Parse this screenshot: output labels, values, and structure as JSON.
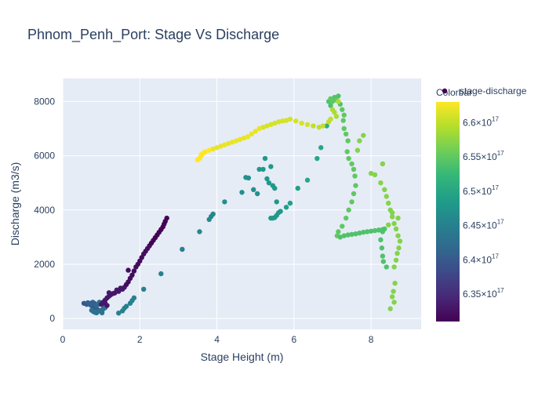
{
  "chart_data": {
    "type": "scatter",
    "title": "Phnom_Penh_Port: Stage Vs Discharge",
    "xlabel": "Stage Height (m)",
    "ylabel": "Discharge (m3/s)",
    "xlim": [
      0,
      9.3
    ],
    "ylim": [
      -400,
      8850
    ],
    "xticks": [
      0,
      2,
      4,
      6,
      8
    ],
    "yticks": [
      0,
      2000,
      4000,
      6000,
      8000
    ],
    "xtick_labels": [
      "0",
      "2",
      "4",
      "6",
      "8"
    ],
    "ytick_labels": [
      "0",
      "2000",
      "4000",
      "6000",
      "8000"
    ],
    "grid": true,
    "legend": {
      "label": "stage-discharge",
      "position": "top-right"
    },
    "colorbar": {
      "title": "Colorbar",
      "min": 6.31e+17,
      "max": 6.63e+17,
      "ticks": [
        6.35e+17,
        6.4e+17,
        6.45e+17,
        6.5e+17,
        6.55e+17,
        6.6e+17
      ],
      "tick_mantissa": [
        "6.35",
        "6.4",
        "6.45",
        "6.5",
        "6.55",
        "6.6"
      ],
      "tick_base": "×10",
      "tick_exponent": "17",
      "colorscale": "viridis"
    },
    "series": [
      {
        "points": [
          [
            0.55,
            560,
            6.4e+17
          ],
          [
            0.62,
            520,
            6.4e+17
          ],
          [
            0.68,
            540,
            6.4e+17
          ],
          [
            0.75,
            470,
            6.4e+17
          ],
          [
            0.7,
            560,
            6.4e+17
          ],
          [
            0.8,
            420,
            6.4e+17
          ],
          [
            0.85,
            380,
            6.4e+17
          ],
          [
            0.9,
            330,
            6.4e+17
          ],
          [
            0.95,
            290,
            6.41e+17
          ],
          [
            1.0,
            250,
            6.41e+17
          ],
          [
            0.82,
            560,
            6.41e+17
          ],
          [
            0.78,
            600,
            6.41e+17
          ],
          [
            0.65,
            580,
            6.41e+17
          ],
          [
            0.72,
            500,
            6.41e+17
          ],
          [
            0.88,
            480,
            6.42e+17
          ],
          [
            0.92,
            520,
            6.42e+17
          ],
          [
            1.0,
            560,
            6.42e+17
          ],
          [
            1.05,
            580,
            6.42e+17
          ],
          [
            0.95,
            600,
            6.42e+17
          ],
          [
            0.85,
            220,
            6.42e+17
          ],
          [
            0.9,
            260,
            6.42e+17
          ],
          [
            0.98,
            300,
            6.43e+17
          ],
          [
            1.05,
            350,
            6.43e+17
          ],
          [
            1.1,
            400,
            6.43e+17
          ],
          [
            1.08,
            450,
            6.43e+17
          ],
          [
            0.75,
            300,
            6.43e+17
          ],
          [
            0.8,
            250,
            6.43e+17
          ],
          [
            0.88,
            210,
            6.43e+17
          ],
          [
            1.02,
            210,
            6.43e+17
          ],
          [
            1.0,
            520,
            6.33e+17
          ],
          [
            1.05,
            600,
            6.33e+17
          ],
          [
            1.1,
            680,
            6.33e+17
          ],
          [
            1.15,
            760,
            6.33e+17
          ],
          [
            1.2,
            820,
            6.33e+17
          ],
          [
            1.25,
            880,
            6.33e+17
          ],
          [
            1.35,
            940,
            6.33e+17
          ],
          [
            1.45,
            1000,
            6.33e+17
          ],
          [
            1.55,
            1080,
            6.33e+17
          ],
          [
            1.6,
            1150,
            6.33e+17
          ],
          [
            1.65,
            1250,
            6.32e+17
          ],
          [
            1.7,
            1350,
            6.32e+17
          ],
          [
            1.75,
            1480,
            6.32e+17
          ],
          [
            1.8,
            1600,
            6.32e+17
          ],
          [
            1.7,
            1780,
            6.32e+17
          ],
          [
            1.85,
            1750,
            6.32e+17
          ],
          [
            1.9,
            1900,
            6.32e+17
          ],
          [
            1.95,
            2000,
            6.32e+17
          ],
          [
            2.0,
            2120,
            6.32e+17
          ],
          [
            2.05,
            2250,
            6.32e+17
          ],
          [
            2.1,
            2380,
            6.32e+17
          ],
          [
            2.15,
            2480,
            6.32e+17
          ],
          [
            2.2,
            2580,
            6.32e+17
          ],
          [
            2.25,
            2680,
            6.32e+17
          ],
          [
            2.3,
            2780,
            6.31e+17
          ],
          [
            2.35,
            2880,
            6.31e+17
          ],
          [
            2.4,
            2980,
            6.31e+17
          ],
          [
            2.45,
            3080,
            6.31e+17
          ],
          [
            2.5,
            3180,
            6.31e+17
          ],
          [
            2.55,
            3280,
            6.31e+17
          ],
          [
            2.6,
            3380,
            6.31e+17
          ],
          [
            2.63,
            3480,
            6.31e+17
          ],
          [
            2.66,
            3580,
            6.31e+17
          ],
          [
            2.7,
            3700,
            6.31e+17
          ],
          [
            1.2,
            950,
            6.33e+17
          ],
          [
            1.3,
            920,
            6.33e+17
          ],
          [
            1.4,
            1050,
            6.33e+17
          ],
          [
            1.5,
            1120,
            6.33e+17
          ],
          [
            1.1,
            560,
            6.33e+17
          ],
          [
            1.15,
            480,
            6.33e+17
          ],
          [
            1.45,
            200,
            6.45e+17
          ],
          [
            1.55,
            280,
            6.45e+17
          ],
          [
            1.6,
            380,
            6.45e+17
          ],
          [
            1.65,
            450,
            6.45e+17
          ],
          [
            1.75,
            560,
            6.45e+17
          ],
          [
            1.8,
            660,
            6.45e+17
          ],
          [
            1.85,
            760,
            6.45e+17
          ],
          [
            2.1,
            1080,
            6.45e+17
          ],
          [
            2.55,
            1650,
            6.45e+17
          ],
          [
            3.1,
            2550,
            6.45e+17
          ],
          [
            3.55,
            3200,
            6.46e+17
          ],
          [
            3.8,
            3650,
            6.46e+17
          ],
          [
            3.85,
            3760,
            6.46e+17
          ],
          [
            3.9,
            3850,
            6.46e+17
          ],
          [
            4.2,
            4300,
            6.47e+17
          ],
          [
            4.65,
            4650,
            6.47e+17
          ],
          [
            4.75,
            5200,
            6.47e+17
          ],
          [
            4.82,
            5180,
            6.47e+17
          ],
          [
            4.95,
            4750,
            6.47e+17
          ],
          [
            5.05,
            4600,
            6.47e+17
          ],
          [
            5.1,
            5500,
            6.48e+17
          ],
          [
            5.2,
            5500,
            6.48e+17
          ],
          [
            5.25,
            5900,
            6.48e+17
          ],
          [
            5.3,
            5150,
            6.48e+17
          ],
          [
            5.35,
            5000,
            6.48e+17
          ],
          [
            5.4,
            5600,
            6.48e+17
          ],
          [
            5.45,
            4900,
            6.48e+17
          ],
          [
            5.5,
            4800,
            6.48e+17
          ],
          [
            5.55,
            4300,
            6.48e+17
          ],
          [
            5.4,
            3700,
            6.48e+17
          ],
          [
            5.45,
            3700,
            6.48e+17
          ],
          [
            5.5,
            3720,
            6.48e+17
          ],
          [
            5.55,
            3800,
            6.48e+17
          ],
          [
            5.6,
            3900,
            6.48e+17
          ],
          [
            5.65,
            3950,
            6.48e+17
          ],
          [
            5.8,
            4100,
            6.49e+17
          ],
          [
            5.9,
            4250,
            6.49e+17
          ],
          [
            6.1,
            4800,
            6.49e+17
          ],
          [
            6.35,
            5100,
            6.5e+17
          ],
          [
            6.6,
            5900,
            6.5e+17
          ],
          [
            6.7,
            6300,
            6.5e+17
          ],
          [
            6.85,
            7100,
            6.51e+17
          ],
          [
            6.9,
            8000,
            6.54e+17
          ],
          [
            6.95,
            7850,
            6.54e+17
          ],
          [
            7.0,
            8050,
            6.54e+17
          ],
          [
            7.05,
            8150,
            6.54e+17
          ],
          [
            7.15,
            8200,
            6.54e+17
          ],
          [
            7.2,
            7900,
            6.54e+17
          ],
          [
            7.25,
            7700,
            6.55e+17
          ],
          [
            7.3,
            7500,
            6.55e+17
          ],
          [
            7.28,
            7300,
            6.55e+17
          ],
          [
            7.3,
            7000,
            6.55e+17
          ],
          [
            7.35,
            6800,
            6.55e+17
          ],
          [
            7.4,
            6550,
            6.55e+17
          ],
          [
            7.38,
            6150,
            6.55e+17
          ],
          [
            7.42,
            5900,
            6.55e+17
          ],
          [
            7.5,
            5700,
            6.55e+17
          ],
          [
            7.55,
            5500,
            6.55e+17
          ],
          [
            7.58,
            5250,
            6.55e+17
          ],
          [
            7.6,
            4900,
            6.55e+17
          ],
          [
            7.55,
            4600,
            6.55e+17
          ],
          [
            7.5,
            4300,
            6.55e+17
          ],
          [
            7.42,
            4000,
            6.55e+17
          ],
          [
            7.35,
            3700,
            6.55e+17
          ],
          [
            7.25,
            3400,
            6.55e+17
          ],
          [
            7.15,
            3200,
            6.55e+17
          ],
          [
            7.12,
            3050,
            6.55e+17
          ],
          [
            7.2,
            3000,
            6.54e+17
          ],
          [
            7.3,
            3050,
            6.54e+17
          ],
          [
            7.4,
            3080,
            6.54e+17
          ],
          [
            7.5,
            3100,
            6.54e+17
          ],
          [
            7.6,
            3120,
            6.54e+17
          ],
          [
            7.7,
            3150,
            6.54e+17
          ],
          [
            7.8,
            3180,
            6.54e+17
          ],
          [
            7.9,
            3200,
            6.54e+17
          ],
          [
            8.0,
            3220,
            6.54e+17
          ],
          [
            8.1,
            3240,
            6.54e+17
          ],
          [
            8.2,
            3260,
            6.54e+17
          ],
          [
            8.3,
            3280,
            6.54e+17
          ],
          [
            8.35,
            3300,
            6.54e+17
          ],
          [
            8.3,
            3200,
            6.54e+17
          ],
          [
            8.25,
            2900,
            6.54e+17
          ],
          [
            8.28,
            2600,
            6.54e+17
          ],
          [
            8.3,
            2300,
            6.54e+17
          ],
          [
            8.32,
            2100,
            6.54e+17
          ],
          [
            8.4,
            1900,
            6.54e+17
          ],
          [
            7.1,
            8050,
            6.55e+17
          ],
          [
            7.0,
            8000,
            6.55e+17
          ],
          [
            6.95,
            8100,
            6.55e+17
          ],
          [
            7.8,
            6750,
            6.57e+17
          ],
          [
            7.7,
            6550,
            6.57e+17
          ],
          [
            7.65,
            6200,
            6.57e+17
          ],
          [
            8.0,
            5350,
            6.57e+17
          ],
          [
            8.1,
            5300,
            6.57e+17
          ],
          [
            8.25,
            5000,
            6.57e+17
          ],
          [
            8.3,
            5700,
            6.57e+17
          ],
          [
            8.35,
            4750,
            6.57e+17
          ],
          [
            8.4,
            4500,
            6.57e+17
          ],
          [
            8.45,
            4250,
            6.57e+17
          ],
          [
            8.5,
            4000,
            6.57e+17
          ],
          [
            8.55,
            3750,
            6.57e+17
          ],
          [
            8.6,
            3500,
            6.57e+17
          ],
          [
            8.65,
            3300,
            6.57e+17
          ],
          [
            8.7,
            3050,
            6.57e+17
          ],
          [
            8.75,
            2850,
            6.57e+17
          ],
          [
            8.72,
            2600,
            6.57e+17
          ],
          [
            8.68,
            2400,
            6.57e+17
          ],
          [
            8.65,
            2150,
            6.57e+17
          ],
          [
            8.6,
            1900,
            6.57e+17
          ],
          [
            8.62,
            1300,
            6.57e+17
          ],
          [
            8.58,
            1000,
            6.57e+17
          ],
          [
            8.55,
            800,
            6.57e+17
          ],
          [
            8.6,
            600,
            6.57e+17
          ],
          [
            8.5,
            360,
            6.57e+17
          ],
          [
            8.7,
            3700,
            6.57e+17
          ],
          [
            8.55,
            3900,
            6.57e+17
          ],
          [
            8.45,
            3450,
            6.57e+17
          ],
          [
            6.95,
            7350,
            6.6e+17
          ],
          [
            6.9,
            7250,
            6.6e+17
          ],
          [
            6.75,
            7100,
            6.6e+17
          ],
          [
            6.65,
            7050,
            6.6e+17
          ],
          [
            6.5,
            7100,
            6.6e+17
          ],
          [
            6.35,
            7150,
            6.61e+17
          ],
          [
            6.2,
            7200,
            6.61e+17
          ],
          [
            6.05,
            7280,
            6.61e+17
          ],
          [
            5.9,
            7350,
            6.61e+17
          ],
          [
            5.8,
            7300,
            6.61e+17
          ],
          [
            5.7,
            7280,
            6.61e+17
          ],
          [
            5.6,
            7250,
            6.61e+17
          ],
          [
            5.5,
            7200,
            6.61e+17
          ],
          [
            5.4,
            7150,
            6.61e+17
          ],
          [
            5.3,
            7100,
            6.61e+17
          ],
          [
            5.2,
            7050,
            6.61e+17
          ],
          [
            5.1,
            7000,
            6.62e+17
          ],
          [
            5.0,
            6900,
            6.62e+17
          ],
          [
            4.9,
            6800,
            6.62e+17
          ],
          [
            4.8,
            6700,
            6.62e+17
          ],
          [
            4.7,
            6650,
            6.62e+17
          ],
          [
            4.6,
            6600,
            6.62e+17
          ],
          [
            4.5,
            6550,
            6.62e+17
          ],
          [
            4.4,
            6500,
            6.62e+17
          ],
          [
            4.3,
            6450,
            6.62e+17
          ],
          [
            4.2,
            6400,
            6.62e+17
          ],
          [
            4.1,
            6350,
            6.62e+17
          ],
          [
            4.0,
            6300,
            6.62e+17
          ],
          [
            3.9,
            6250,
            6.62e+17
          ],
          [
            3.8,
            6200,
            6.63e+17
          ],
          [
            3.7,
            6150,
            6.63e+17
          ],
          [
            3.65,
            6100,
            6.63e+17
          ],
          [
            3.6,
            6050,
            6.63e+17
          ],
          [
            3.58,
            5980,
            6.63e+17
          ],
          [
            3.55,
            5900,
            6.63e+17
          ],
          [
            3.5,
            5850,
            6.63e+17
          ],
          [
            7.05,
            7600,
            6.59e+17
          ],
          [
            7.1,
            7450,
            6.59e+17
          ],
          [
            7.15,
            8000,
            6.59e+17
          ],
          [
            7.0,
            7700,
            6.59e+17
          ]
        ]
      }
    ]
  }
}
